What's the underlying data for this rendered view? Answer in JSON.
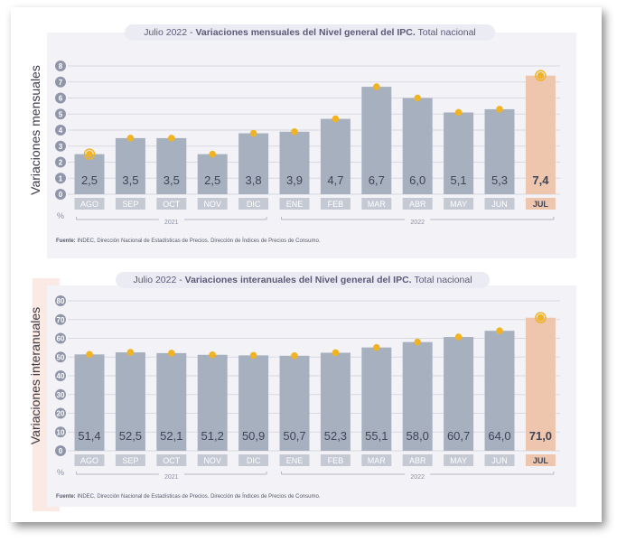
{
  "colors": {
    "panel_bg": "#f3f3f7",
    "pink_strip": "#fbe9e3",
    "bar": "#a7b0bf",
    "highlight_bar": "#eec6ae",
    "marker": "#f0b323",
    "grid": "#d7d9e1",
    "axis_text": "#8a8fa3",
    "title_bg": "#ebebf3",
    "title_text": "#5c5a78",
    "tick_circle": "#9096aa",
    "value_text": "#3f4456",
    "label_bg": "#c4c9d4"
  },
  "chart_data": [
    {
      "type": "bar",
      "title_prefix": "Julio 2022 - ",
      "title_bold": "Variaciones mensuales del Nivel general del IPC.",
      "title_suffix": " Total nacional",
      "ylabel": "Variaciones mensuales",
      "unit": "%",
      "ylim": [
        0,
        8
      ],
      "yticks": [
        0,
        1,
        2,
        3,
        4,
        5,
        6,
        7,
        8
      ],
      "categories": [
        "AGO",
        "SEP",
        "OCT",
        "NOV",
        "DIC",
        "ENE",
        "FEB",
        "MAR",
        "ABR",
        "MAY",
        "JUN",
        "JUL"
      ],
      "values": [
        2.5,
        3.5,
        3.5,
        2.5,
        3.8,
        3.9,
        4.7,
        6.7,
        6.0,
        5.1,
        5.3,
        7.4
      ],
      "value_labels": [
        "2,5",
        "3,5",
        "3,5",
        "2,5",
        "3,8",
        "3,9",
        "4,7",
        "6,7",
        "6,0",
        "5,1",
        "5,3",
        "7,4"
      ],
      "highlight_index": 11,
      "ring_indices": [
        0,
        11
      ],
      "years": [
        {
          "label": "2021",
          "from": 0,
          "to": 4
        },
        {
          "label": "2022",
          "from": 5,
          "to": 11
        }
      ],
      "source_label": "Fuente:",
      "source_text": " INDEC, Dirección Nacional de Estadísticas de Precios. Dirección de Índices de Precios de Consumo."
    },
    {
      "type": "bar",
      "title_prefix": "Julio 2022  - ",
      "title_bold": "Variaciones interanuales del Nivel general del IPC.",
      "title_suffix": " Total nacional",
      "ylabel": "Variaciones interanuales",
      "unit": "%",
      "ylim": [
        0,
        80
      ],
      "yticks": [
        0,
        10,
        20,
        30,
        40,
        50,
        60,
        70,
        80
      ],
      "categories": [
        "AGO",
        "SEP",
        "OCT",
        "NOV",
        "DIC",
        "ENE",
        "FEB",
        "MAR",
        "ABR",
        "MAY",
        "JUN",
        "JUL"
      ],
      "values": [
        51.4,
        52.5,
        52.1,
        51.2,
        50.9,
        50.7,
        52.3,
        55.1,
        58.0,
        60.7,
        64.0,
        71.0
      ],
      "value_labels": [
        "51,4",
        "52,5",
        "52,1",
        "51,2",
        "50,9",
        "50,7",
        "52,3",
        "55,1",
        "58,0",
        "60,7",
        "64,0",
        "71,0"
      ],
      "highlight_index": 11,
      "ring_indices": [
        11
      ],
      "years": [
        {
          "label": "2021",
          "from": 0,
          "to": 4
        },
        {
          "label": "2022",
          "from": 5,
          "to": 11
        }
      ],
      "source_label": "Fuente:",
      "source_text": " INDEC, Dirección Nacional de Estadísticas de Precios. Dirección de Índices de Precios de Consumo."
    }
  ]
}
